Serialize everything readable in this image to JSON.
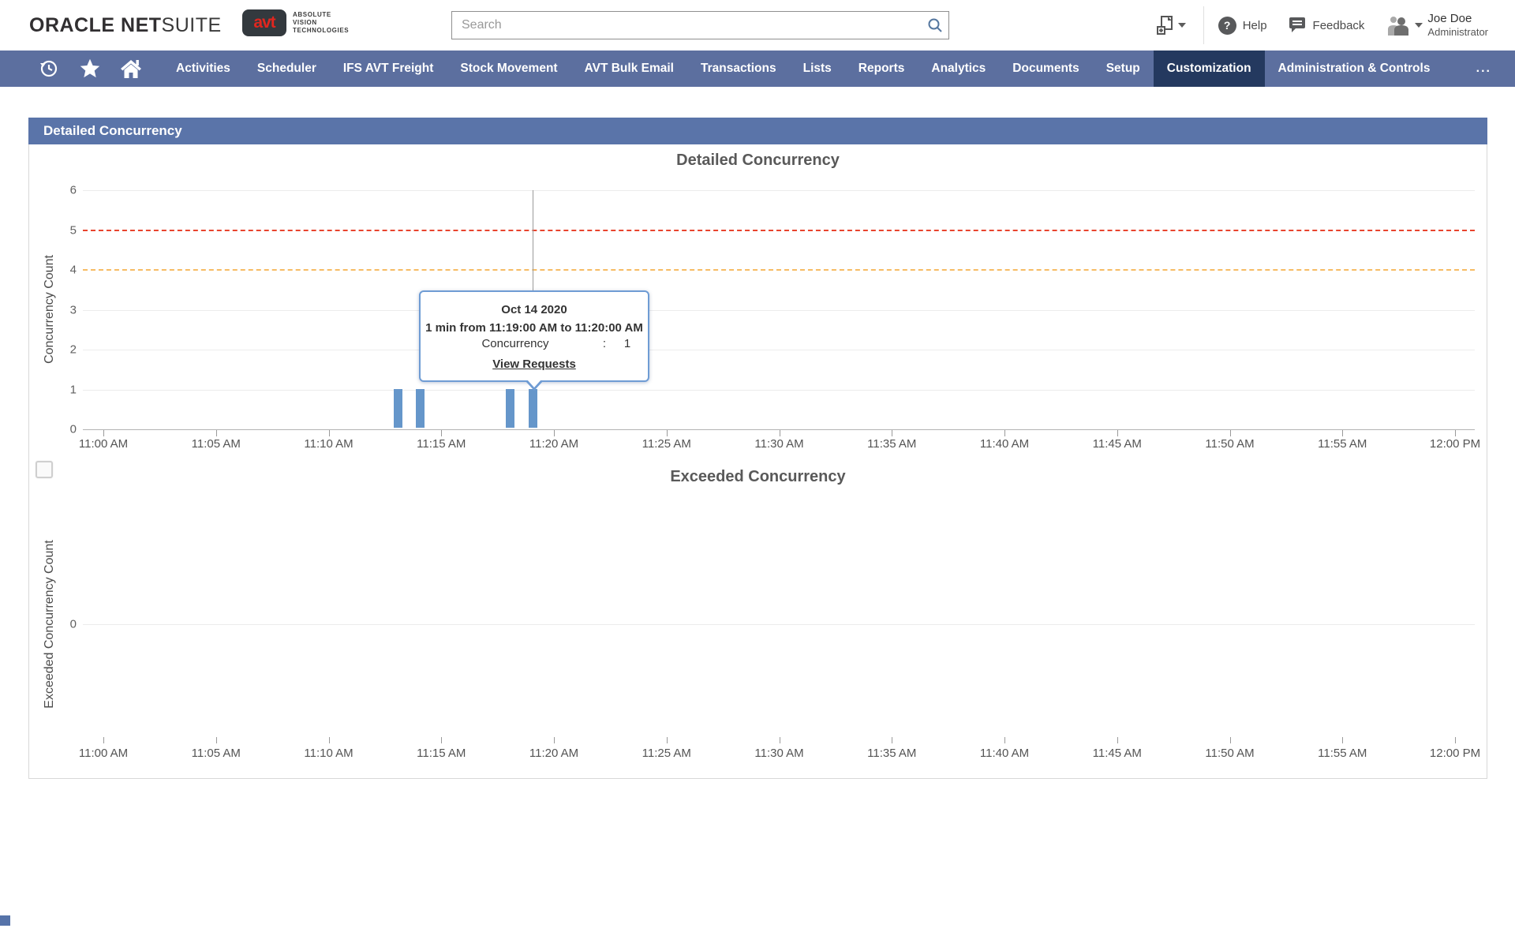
{
  "header": {
    "logo": {
      "oracle": "ORACLE",
      "net": "NET",
      "suite": "SUITE"
    },
    "avt_logo": {
      "short": "avt",
      "lines": [
        "ABSOLUTE",
        "VISION",
        "TECHNOLOGIES"
      ]
    },
    "search": {
      "placeholder": "Search"
    },
    "help_label": "Help",
    "help_glyph": "?",
    "feedback_label": "Feedback",
    "user": {
      "name": "Joe Doe",
      "role": "Administrator"
    }
  },
  "nav": {
    "items": [
      "Activities",
      "Scheduler",
      "IFS AVT Freight",
      "Stock Movement",
      "AVT Bulk Email",
      "Transactions",
      "Lists",
      "Reports",
      "Analytics",
      "Documents",
      "Setup",
      "Customization",
      "Administration & Controls"
    ],
    "active": "Customization",
    "overflow": "..."
  },
  "portlet": {
    "title": "Detailed Concurrency"
  },
  "tooltip": {
    "date": "Oct 14 2020",
    "range": "1 min from 11:19:00 AM to 11:20:00 AM",
    "metric_label": "Concurrency",
    "separator": ":",
    "metric_value": "1",
    "link": "View Requests",
    "target_time": "11:19 AM"
  },
  "chart_data": [
    {
      "type": "bar",
      "title": "Detailed Concurrency",
      "ylabel": "Concurrency Count",
      "ylim": [
        0,
        6
      ],
      "yticks": [
        0,
        1,
        2,
        3,
        4,
        5,
        6
      ],
      "x_axis_labels": [
        "11:00 AM",
        "11:05 AM",
        "11:10 AM",
        "11:15 AM",
        "11:20 AM",
        "11:25 AM",
        "11:30 AM",
        "11:35 AM",
        "11:40 AM",
        "11:45 AM",
        "11:50 AM",
        "11:55 AM",
        "12:00 PM"
      ],
      "grid": true,
      "legend": "none",
      "threshold_lines": [
        {
          "value": 5,
          "color": "#e8442e",
          "style": "dashed"
        },
        {
          "value": 4,
          "color": "#f7bc64",
          "style": "dashed"
        }
      ],
      "bar_color": "#6596ca",
      "bars": [
        {
          "time": "11:13 AM",
          "value": 1
        },
        {
          "time": "11:14 AM",
          "value": 1
        },
        {
          "time": "11:18 AM",
          "value": 1
        },
        {
          "time": "11:19 AM",
          "value": 1
        }
      ]
    },
    {
      "type": "bar",
      "title": "Exceeded Concurrency",
      "ylabel": "Exceeded Concurrency Count",
      "yticks": [
        0
      ],
      "x_axis_labels": [
        "11:00 AM",
        "11:05 AM",
        "11:10 AM",
        "11:15 AM",
        "11:20 AM",
        "11:25 AM",
        "11:30 AM",
        "11:35 AM",
        "11:40 AM",
        "11:45 AM",
        "11:50 AM",
        "11:55 AM",
        "12:00 PM"
      ],
      "grid": true,
      "legend": "none",
      "bars": []
    }
  ]
}
